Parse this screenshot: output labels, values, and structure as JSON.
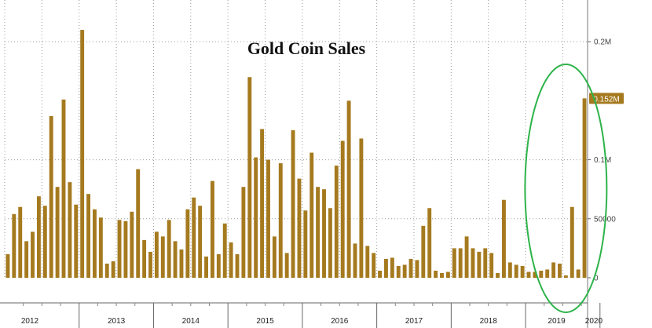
{
  "chart_data": {
    "type": "bar",
    "title": "Gold Coin Sales",
    "bar_color": "#a57a1f",
    "highlight_color": "#2db34a",
    "last_value_label": "0.152M",
    "ylim": [
      0,
      230000
    ],
    "y_ticks": [
      {
        "value": 0,
        "label": "0"
      },
      {
        "value": 50000,
        "label": "50000"
      },
      {
        "value": 100000,
        "label": "0.1M"
      },
      {
        "value": 200000,
        "label": "0.2M"
      }
    ],
    "years": [
      "2012",
      "2013",
      "2014",
      "2015",
      "2016",
      "2017",
      "2018",
      "2019",
      "2020"
    ],
    "year_start_index": [
      0,
      12,
      24,
      36,
      48,
      60,
      72,
      84,
      96
    ],
    "values": [
      20000,
      54000,
      60000,
      31000,
      39000,
      69000,
      61000,
      137000,
      77000,
      151000,
      81000,
      62000,
      210000,
      71000,
      58000,
      51000,
      12000,
      14000,
      49000,
      48000,
      56000,
      92000,
      32000,
      22000,
      39000,
      35000,
      49000,
      31000,
      24000,
      58000,
      68000,
      61000,
      18000,
      82000,
      20000,
      46000,
      30000,
      20000,
      77000,
      170000,
      102000,
      126000,
      100000,
      35000,
      97000,
      21000,
      125000,
      84000,
      57000,
      106000,
      77000,
      75000,
      59000,
      95000,
      116000,
      150000,
      29000,
      118000,
      27000,
      21000,
      6000,
      16000,
      17000,
      10000,
      11000,
      16000,
      15000,
      44000,
      59000,
      6000,
      4000,
      5000,
      25000,
      25000,
      35000,
      25000,
      22000,
      25000,
      21000,
      4000,
      66000,
      13000,
      11000,
      10000,
      5000,
      5000,
      6000,
      7000,
      13000,
      12000,
      2000,
      60000,
      7000,
      152000
    ]
  }
}
